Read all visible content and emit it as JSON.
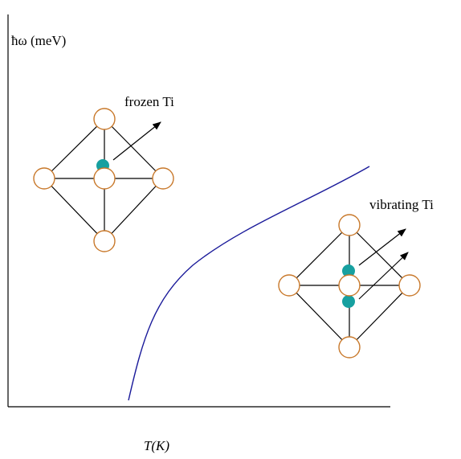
{
  "axes": {
    "y_label": "ħω (meV)",
    "x_label": "T(K)"
  },
  "annotations": [
    {
      "label": "frozen Ti"
    },
    {
      "label": "vibrating Ti"
    }
  ]
}
